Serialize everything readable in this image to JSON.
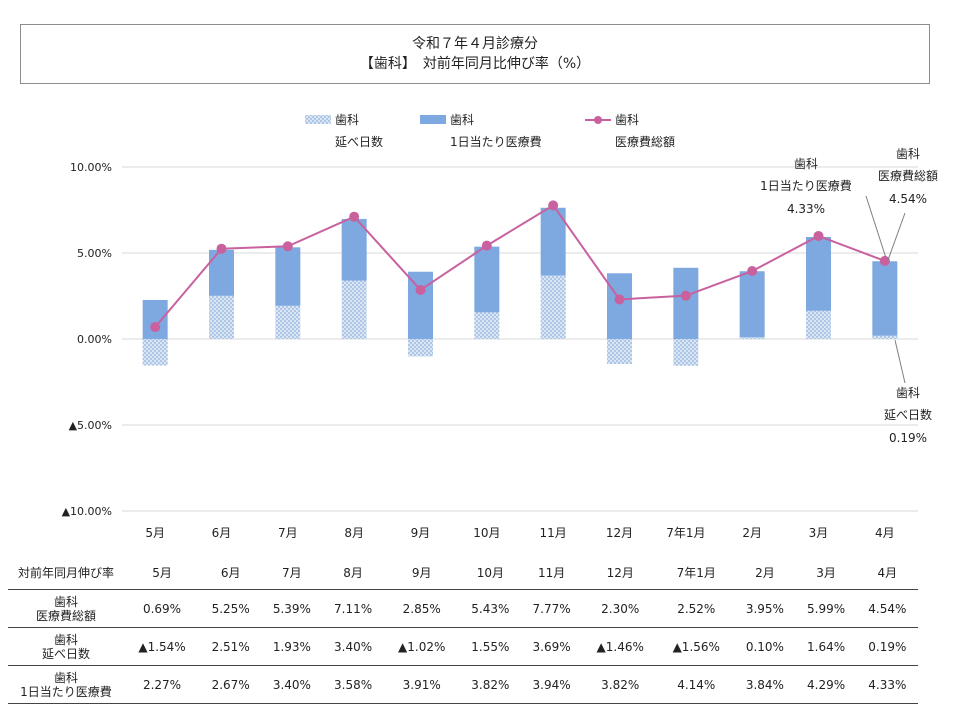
{
  "title": {
    "line1": "令和７年４月診療分",
    "line2": "【歯科】　対前年同月比伸び率（%）"
  },
  "colors": {
    "days_bar": "#dbe6f5",
    "days_pattern": "#8fb0dc",
    "perday_bar": "#7ea8e0",
    "total_line": "#c9619f",
    "grid": "#d9d9d9"
  },
  "legend": [
    {
      "label1": "歯科",
      "label2": "延べ日数",
      "icon": "dotted-bar"
    },
    {
      "label1": "歯科",
      "label2": "1日当たり医療費",
      "icon": "solid-bar"
    },
    {
      "label1": "歯科",
      "label2": "医療費総額",
      "icon": "line-marker"
    }
  ],
  "chart_data": {
    "type": "bar",
    "stacked": true,
    "categories": [
      "5月",
      "6月",
      "7月",
      "8月",
      "9月",
      "10月",
      "11月",
      "12月",
      "7年1月",
      "2月",
      "3月",
      "4月"
    ],
    "ylim": [
      -10,
      10
    ],
    "yticks": [
      {
        "value": 10,
        "label": "10.00%"
      },
      {
        "value": 5,
        "label": "5.00%"
      },
      {
        "value": 0,
        "label": "0.00%"
      },
      {
        "value": -5,
        "label": "▲5.00%"
      },
      {
        "value": -10,
        "label": "▲10.00%"
      }
    ],
    "grid": true,
    "series": [
      {
        "name": "歯科 延べ日数",
        "kind": "bar",
        "values": [
          -1.54,
          2.51,
          1.93,
          3.4,
          -1.02,
          1.55,
          3.69,
          -1.46,
          -1.56,
          0.1,
          1.64,
          0.19
        ]
      },
      {
        "name": "歯科 1日当たり医療費",
        "kind": "bar",
        "values": [
          2.27,
          2.67,
          3.4,
          3.58,
          3.91,
          3.82,
          3.94,
          3.82,
          4.14,
          3.84,
          4.29,
          4.33
        ]
      },
      {
        "name": "歯科 医療費総額",
        "kind": "line",
        "values": [
          0.69,
          5.25,
          5.39,
          7.11,
          2.85,
          5.43,
          7.77,
          2.3,
          2.52,
          3.95,
          5.99,
          4.54
        ]
      }
    ],
    "annotations": [
      {
        "lines": [
          "歯科",
          "1日当たり医療費",
          "4.33%"
        ]
      },
      {
        "lines": [
          "歯科",
          "医療費総額",
          "4.54%"
        ]
      },
      {
        "lines": [
          "歯科",
          "延べ日数",
          "0.19%"
        ]
      }
    ]
  },
  "table": {
    "header": [
      "対前年同月伸び率",
      "5月",
      "6月",
      "7月",
      "8月",
      "9月",
      "10月",
      "11月",
      "12月",
      "7年1月",
      "2月",
      "3月",
      "4月"
    ],
    "rows": [
      {
        "label1": "歯科",
        "label2": "医療費総額",
        "cells": [
          "0.69%",
          "5.25%",
          "5.39%",
          "7.11%",
          "2.85%",
          "5.43%",
          "7.77%",
          "2.30%",
          "2.52%",
          "3.95%",
          "5.99%",
          "4.54%"
        ]
      },
      {
        "label1": "歯科",
        "label2": "延べ日数",
        "cells": [
          "▲1.54%",
          "2.51%",
          "1.93%",
          "3.40%",
          "▲1.02%",
          "1.55%",
          "3.69%",
          "▲1.46%",
          "▲1.56%",
          "0.10%",
          "1.64%",
          "0.19%"
        ]
      },
      {
        "label1": "歯科",
        "label2": "1日当たり医療費",
        "cells": [
          "2.27%",
          "2.67%",
          "3.40%",
          "3.58%",
          "3.91%",
          "3.82%",
          "3.94%",
          "3.82%",
          "4.14%",
          "3.84%",
          "4.29%",
          "4.33%"
        ]
      }
    ]
  }
}
